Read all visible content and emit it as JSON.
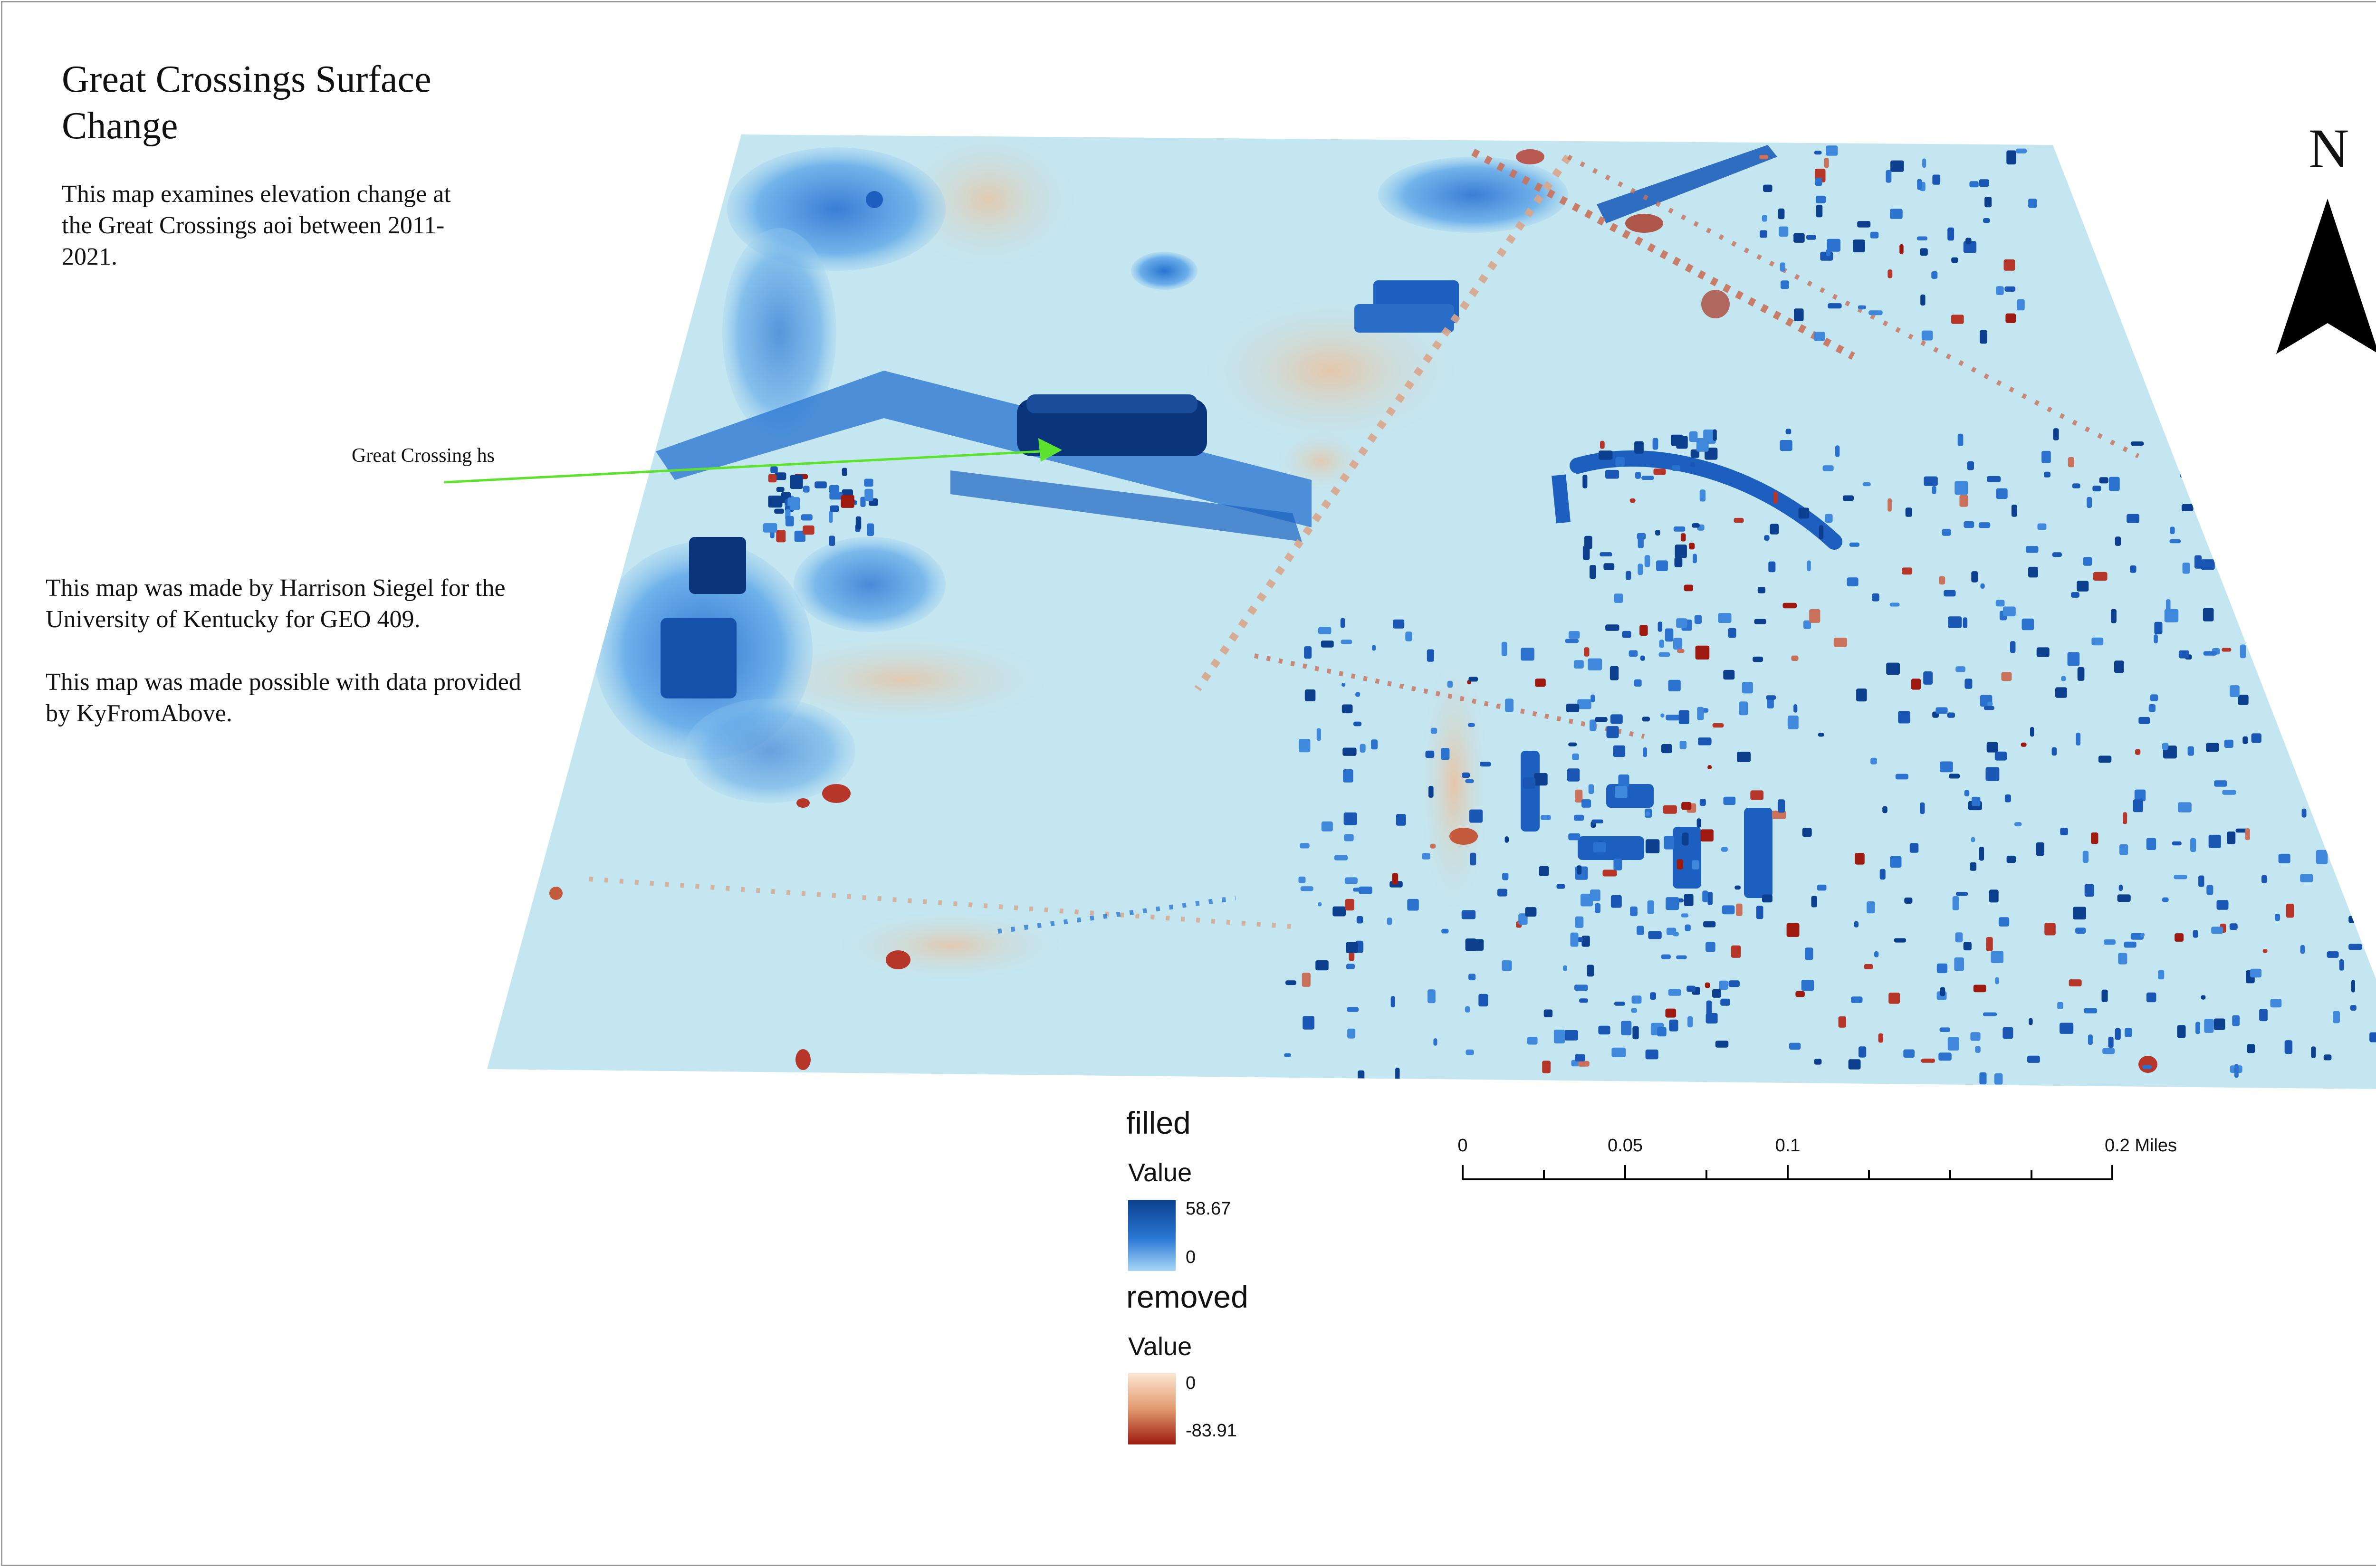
{
  "map": {
    "title": "Great Crossings Surface Change",
    "description": "This map examines elevation change at the Great Crossings aoi between 2011-2021.",
    "credits": [
      "This map was made by Harrison Siegel for the University of Kentucky for GEO 409.",
      "This map was made possible with data provided by KyFromAbove."
    ],
    "callout_label": "Great Crossing hs",
    "callout_color": "#5de22e",
    "north_arrow": {
      "label": "N",
      "icon": "north-arrow-icon"
    },
    "surface_base_color": "#c3e6f1",
    "legend": {
      "filled": {
        "name": "filled",
        "field": "Value",
        "max": "58.67",
        "min": "0",
        "colors": [
          "#0b3f8e",
          "#2b79d6",
          "#a9d6f7"
        ]
      },
      "removed": {
        "name": "removed",
        "field": "Value",
        "max": "0",
        "min": "-83.91",
        "colors": [
          "#fbe6d2",
          "#e29a6e",
          "#9e1a10"
        ]
      }
    },
    "scale_bar": {
      "unit": "Miles",
      "labels": [
        "0",
        "0.05",
        "0.1",
        "0.2 Miles"
      ]
    }
  }
}
